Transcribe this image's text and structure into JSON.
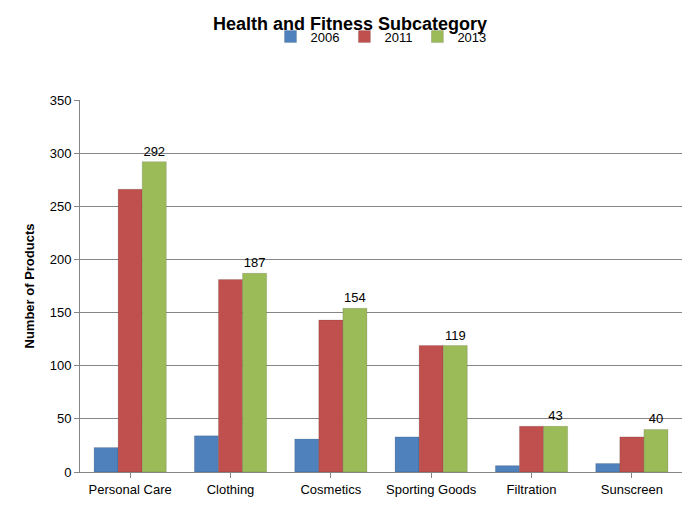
{
  "chart_data": {
    "type": "bar",
    "title": "Health and Fitness Subcategory",
    "y_label": "Number of Products",
    "categories": [
      "Personal Care",
      "Clothing",
      "Cosmetics",
      "Sporting Goods",
      "Filtration",
      "Sunscreen"
    ],
    "series": [
      {
        "name": "2006",
        "color": "#4f81bd",
        "values": [
          23,
          34,
          31,
          33,
          6,
          8
        ],
        "data_labels": false
      },
      {
        "name": "2011",
        "color": "#c0504d",
        "values": [
          266,
          181,
          143,
          119,
          43,
          33
        ],
        "data_labels": false
      },
      {
        "name": "2013",
        "color": "#9bbb59",
        "values": [
          292,
          187,
          154,
          119,
          43,
          40
        ],
        "data_labels": true
      }
    ],
    "ylim": [
      0,
      350
    ],
    "yticks": [
      0,
      50,
      100,
      150,
      200,
      250,
      300,
      350
    ],
    "grid": true,
    "legend": "top"
  }
}
